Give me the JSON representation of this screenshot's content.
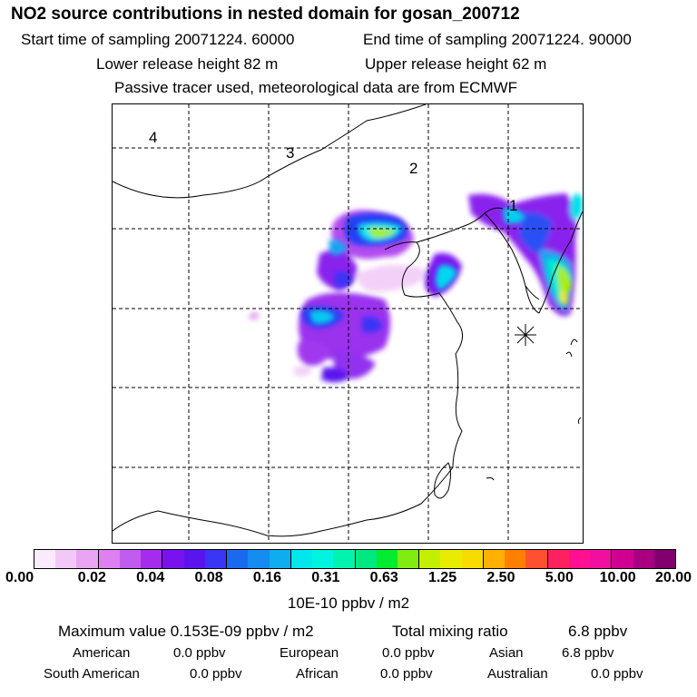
{
  "header": {
    "title": "NO2 source contributions in nested domain for gosan_200712",
    "start": "Start time of sampling 20071224. 60000",
    "end": "End time of sampling 20071224. 90000",
    "lower": "Lower release height   82 m",
    "upper": "Upper release height   62 m",
    "note": "Passive tracer used, meteorological data are from ECMWF"
  },
  "map": {
    "region_labels": [
      "4",
      "3",
      "2",
      "1"
    ],
    "receptor_icon": "asterisk-icon"
  },
  "colorbar": {
    "colors": [
      "#fbeafd",
      "#f2c8f8",
      "#e9a4f4",
      "#dd80f0",
      "#c25cee",
      "#a52cec",
      "#7a12f0",
      "#5a14ee",
      "#3a36f6",
      "#1a6af0",
      "#148cf0",
      "#10acf0",
      "#00e8ec",
      "#00f4e0",
      "#00f4b0",
      "#00e880",
      "#00ec30",
      "#80ec10",
      "#c4f000",
      "#e8ec00",
      "#f8dc00",
      "#ffb000",
      "#ff8000",
      "#ff5030",
      "#ff2060",
      "#ff1090",
      "#f010a0",
      "#d00090",
      "#a80080",
      "#80006e"
    ],
    "ticks": [
      "0.00",
      "0.02",
      "0.04",
      "0.08",
      "0.16",
      "0.31",
      "0.63",
      "1.25",
      "2.50",
      "5.00",
      "10.00",
      "20.00"
    ],
    "unit": "10E-10 ppbv / m2"
  },
  "stats": {
    "max": "Maximum value  0.153E-09 ppbv / m2",
    "total_label": "Total mixing ratio",
    "total_value": "6.8 ppbv",
    "american_label": "American",
    "american_value": "0.0 ppbv",
    "european_label": "European",
    "european_value": "0.0 ppbv",
    "asian_label": "Asian",
    "asian_value": "6.8 ppbv",
    "south_american_label": "South American",
    "south_american_value": "0.0 ppbv",
    "african_label": "African",
    "african_value": "0.0 ppbv",
    "australian_label": "Australian",
    "australian_value": "0.0 ppbv"
  }
}
